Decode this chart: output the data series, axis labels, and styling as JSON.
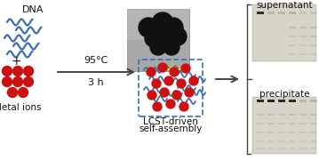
{
  "bg_color": "#ffffff",
  "dna_color": "#3d6db5",
  "ion_color": "#cc1111",
  "arrow_color": "#444444",
  "text_color": "#111111",
  "gel_bg": "#d8d4c8",
  "gel_bg2": "#ccc8bc",
  "tem_bg": "#a8a8a8",
  "tem_np_color": "#111111",
  "scalebar_color": "#dddd00",
  "dna_label": "DNA",
  "ion_label": "Metal ions",
  "plus_label": "+",
  "condition_line1": "95°C",
  "condition_line2": "3 h",
  "lcst_label_line1": "LCST-driven",
  "lcst_label_line2": "self-assembly",
  "supernatant_label": "supernatant",
  "precipitate_label": "precipitate"
}
